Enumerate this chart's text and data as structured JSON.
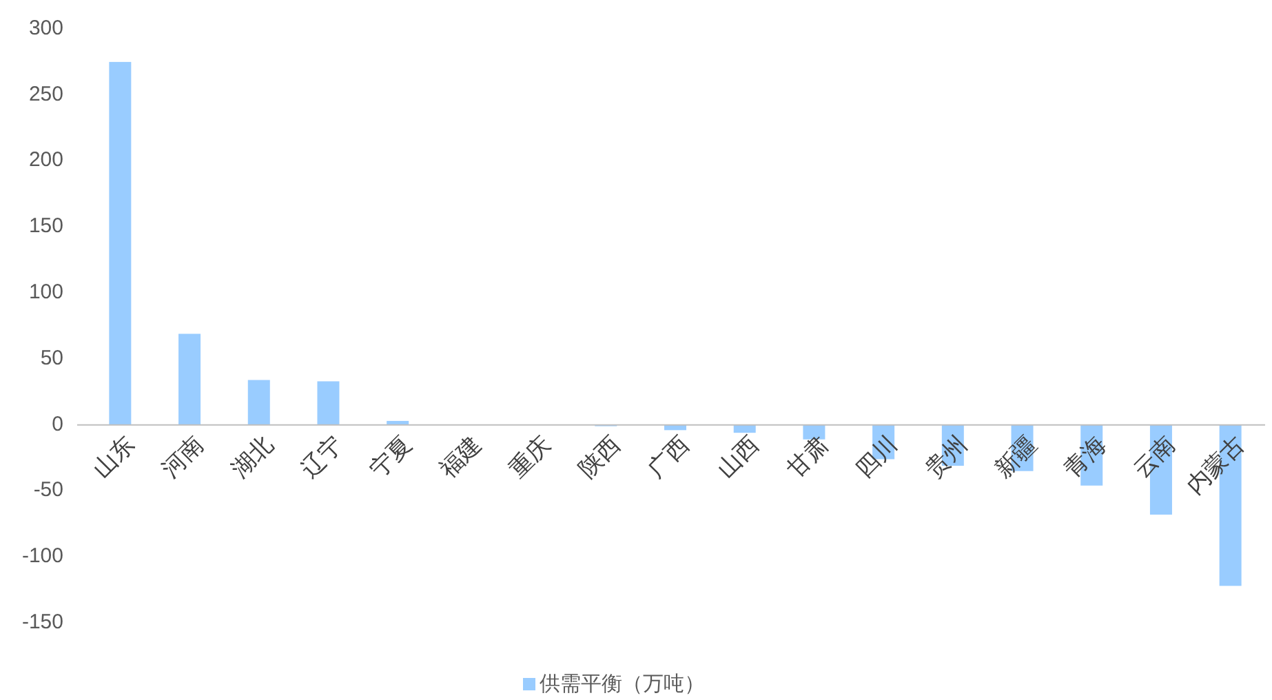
{
  "chart_data": {
    "type": "bar",
    "categories": [
      "山东",
      "河南",
      "湖北",
      "辽宁",
      "宁夏",
      "福建",
      "重庆",
      "陕西",
      "广西",
      "山西",
      "甘肃",
      "四川",
      "贵州",
      "新疆",
      "青海",
      "云南",
      "内蒙古"
    ],
    "series": [
      {
        "name": "供需平衡（万吨）",
        "color": "#99ccff",
        "values": [
          275,
          69,
          34,
          33,
          3,
          0,
          0,
          -1,
          -4,
          -6,
          -11,
          -26,
          -31,
          -35,
          -46,
          -68,
          -122
        ]
      }
    ],
    "ylim": [
      -150,
      300
    ],
    "yticks": [
      -150,
      -100,
      -50,
      0,
      50,
      100,
      150,
      200,
      250,
      300
    ],
    "grid": false,
    "legend": "bottom"
  }
}
